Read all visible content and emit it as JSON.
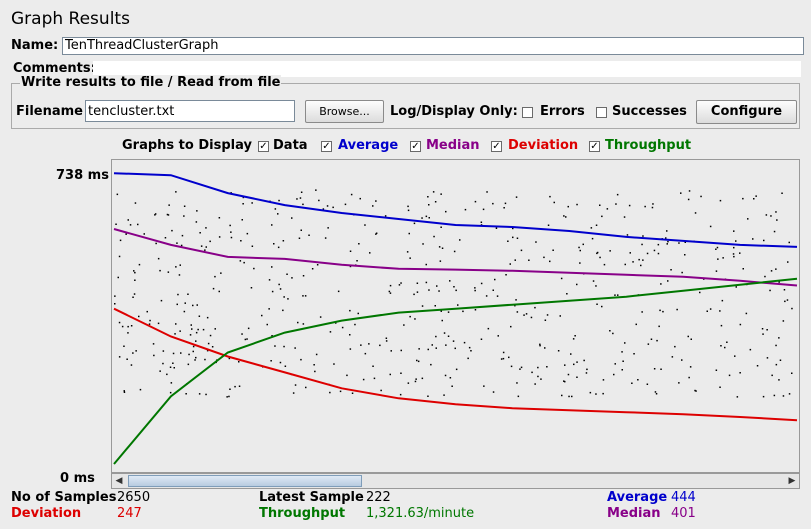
{
  "title": "Graph Results",
  "name_label": "Name:",
  "name_value": "TenThreadClusterGraph",
  "comments_label": "Comments:",
  "file_group": {
    "legend": "Write results to file / Read from file",
    "filename_label": "Filename",
    "filename_value": "tencluster.txt",
    "browse_label": "Browse...",
    "logdisplay_label": "Log/Display Only:",
    "errors_label": "Errors",
    "errors_checked": false,
    "successes_label": "Successes",
    "successes_checked": false,
    "configure_label": "Configure"
  },
  "graphs_to_display": {
    "label": "Graphs to Display",
    "items": [
      {
        "label": "Data",
        "color": "#000000",
        "checked": true
      },
      {
        "label": "Average",
        "color": "#0000cc",
        "checked": true
      },
      {
        "label": "Median",
        "color": "#880088",
        "checked": true
      },
      {
        "label": "Deviation",
        "color": "#dd0000",
        "checked": true
      },
      {
        "label": "Throughput",
        "color": "#007700",
        "checked": true
      }
    ]
  },
  "y_max_label": "738 ms",
  "y_min_label": "0 ms",
  "chart_data": {
    "type": "line",
    "ylim": [
      0,
      738
    ],
    "y_tick_labels": [
      "738 ms",
      "0 ms"
    ],
    "series": [
      {
        "name": "Average",
        "color": "#0000cc",
        "values": [
          740,
          735,
          690,
          660,
          640,
          625,
          610,
          605,
          595,
          580,
          570,
          560,
          555
        ]
      },
      {
        "name": "Median",
        "color": "#880088",
        "values": [
          600,
          560,
          530,
          525,
          510,
          500,
          498,
          495,
          490,
          485,
          480,
          470,
          458
        ]
      },
      {
        "name": "Deviation",
        "color": "#dd0000",
        "values": [
          400,
          330,
          280,
          240,
          200,
          175,
          160,
          150,
          145,
          140,
          135,
          128,
          120
        ]
      },
      {
        "name": "Throughput",
        "color": "#007700",
        "values": [
          10,
          180,
          290,
          340,
          370,
          390,
          400,
          410,
          420,
          430,
          445,
          460,
          475
        ]
      }
    ]
  },
  "stats": {
    "no_samples_label": "No of Samples",
    "no_samples_value": "2650",
    "latest_label": "Latest Sample",
    "latest_value": "222",
    "average_label": "Average",
    "average_value": "444",
    "deviation_label": "Deviation",
    "deviation_value": "247",
    "throughput_label": "Throughput",
    "throughput_value": "1,321.63/minute",
    "median_label": "Median",
    "median_value": "401"
  }
}
